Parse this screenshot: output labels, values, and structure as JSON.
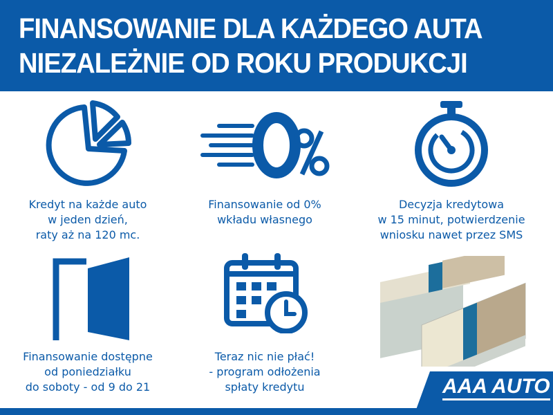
{
  "header": {
    "line1": "FINANSOWANIE DLA KAŻDEGO AUTA",
    "line2": "NIEZALEŻNIE OD ROKU PRODUKCJI"
  },
  "features": [
    {
      "icon": "pie-chart-icon",
      "lines": [
        "Kredyt na każde auto",
        "w jeden dzień,",
        "raty aż na 120 mc."
      ]
    },
    {
      "icon": "zero-percent-icon",
      "icon_text": "0%",
      "lines": [
        "Finansowanie od 0%",
        "wkładu własnego"
      ]
    },
    {
      "icon": "stopwatch-icon",
      "lines": [
        "Decyzja kredytowa",
        "w 15 minut, potwierdzenie",
        "wniosku nawet przez SMS"
      ]
    },
    {
      "icon": "door-icon",
      "lines": [
        "Finansowanie dostępne",
        "od poniedziałku",
        "do soboty - od 9 do 21"
      ]
    },
    {
      "icon": "calendar-clock-icon",
      "lines": [
        "Teraz nic nie płać!",
        "- program odłożenia",
        "spłaty kredytu"
      ]
    }
  ],
  "logo": {
    "text": "AAA AUTO"
  },
  "colors": {
    "brand": "#0b5aa8"
  }
}
